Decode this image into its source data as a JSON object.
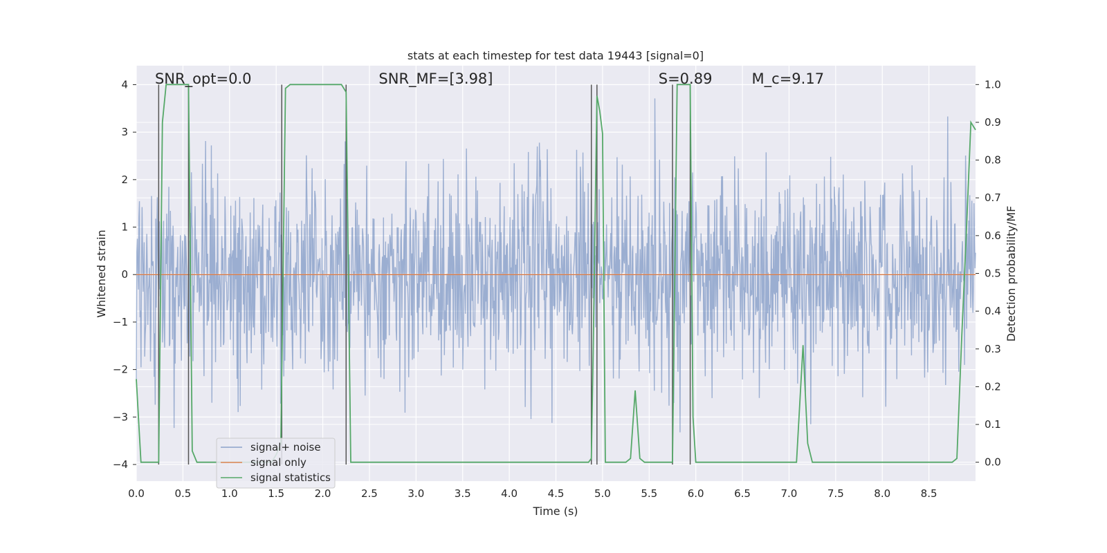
{
  "chart_data": {
    "type": "line",
    "title": "stats at each timestep for test data 19443 [signal=0]",
    "xlabel": "Time (s)",
    "ylabel_left": "Whitened strain",
    "ylabel_right": "Detection probability/MF",
    "xlim": [
      0,
      9.0
    ],
    "ylim_left": [
      -4.35,
      4.4
    ],
    "ylim_right": [
      -0.05,
      1.05
    ],
    "x_ticks": [
      "0.0",
      "0.5",
      "1.0",
      "1.5",
      "2.0",
      "2.5",
      "3.0",
      "3.5",
      "4.0",
      "4.5",
      "5.0",
      "5.5",
      "6.0",
      "6.5",
      "7.0",
      "7.5",
      "8.0",
      "8.5"
    ],
    "x_tick_values": [
      0,
      0.5,
      1.0,
      1.5,
      2.0,
      2.5,
      3.0,
      3.5,
      4.0,
      4.5,
      5.0,
      5.5,
      6.0,
      6.5,
      7.0,
      7.5,
      8.0,
      8.5
    ],
    "y_left_ticks": [
      "4",
      "3",
      "2",
      "1",
      "0",
      "−1",
      "−2",
      "−3",
      "−4"
    ],
    "y_left_tick_values": [
      4,
      3,
      2,
      1,
      0,
      -1,
      -2,
      -3,
      -4
    ],
    "y_right_ticks": [
      "1.0",
      "0.9",
      "0.8",
      "0.7",
      "0.6",
      "0.5",
      "0.4",
      "0.3",
      "0.2",
      "0.1",
      "0.0"
    ],
    "y_right_tick_values": [
      1.0,
      0.9,
      0.8,
      0.7,
      0.6,
      0.5,
      0.4,
      0.3,
      0.2,
      0.1,
      0.0
    ],
    "annotations": [
      {
        "text": "SNR_opt=0.0",
        "x": 0.2
      },
      {
        "text": "SNR_MF=[3.98]",
        "x": 2.6
      },
      {
        "text": "S=0.89",
        "x": 5.6
      },
      {
        "text": "M_c=9.17",
        "x": 6.6
      }
    ],
    "legend": [
      "signal+ noise",
      "signal only",
      "signal statistics"
    ],
    "legend_position": "lower-left",
    "series_colors": {
      "noise": "#4c72b0",
      "signal_only": "#dd8452",
      "statistics": "#55a868",
      "markers": "#555555"
    },
    "noise_amplitude_std": 1.0,
    "signal_only_value": 0,
    "event_markers_x": [
      0.24,
      0.56,
      1.56,
      2.25,
      4.88,
      4.94,
      5.75,
      5.94
    ],
    "statistics": {
      "x": [
        0.0,
        0.05,
        0.1,
        0.15,
        0.2,
        0.24,
        0.28,
        0.32,
        0.37,
        0.42,
        0.47,
        0.52,
        0.56,
        0.6,
        0.65,
        0.7,
        0.8,
        0.9,
        1.0,
        1.1,
        1.2,
        1.3,
        1.4,
        1.45,
        1.5,
        1.55,
        1.6,
        1.65,
        1.7,
        1.8,
        1.9,
        2.0,
        2.1,
        2.2,
        2.25,
        2.3,
        2.35,
        2.45,
        2.6,
        3.0,
        3.5,
        4.0,
        4.5,
        4.75,
        4.8,
        4.85,
        4.88,
        4.9,
        4.94,
        4.97,
        5.0,
        5.03,
        5.06,
        5.1,
        5.2,
        5.25,
        5.3,
        5.35,
        5.4,
        5.45,
        5.5,
        5.6,
        5.7,
        5.75,
        5.8,
        5.85,
        5.9,
        5.94,
        5.97,
        6.0,
        6.05,
        6.07,
        6.15,
        6.2,
        6.3,
        6.5,
        7.0,
        7.08,
        7.15,
        7.2,
        7.25,
        7.3,
        7.5,
        8.0,
        8.5,
        8.75,
        8.8,
        8.85,
        8.9,
        8.95,
        9.0
      ],
      "y": [
        0.22,
        0.0,
        0.0,
        0.0,
        0.0,
        0.0,
        0.9,
        1.0,
        1.0,
        1.0,
        1.0,
        1.0,
        1.0,
        0.03,
        0.0,
        0.0,
        0.0,
        0.0,
        0.0,
        0.0,
        0.0,
        0.0,
        0.0,
        0.0,
        0.02,
        0.05,
        0.99,
        1.0,
        1.0,
        1.0,
        1.0,
        1.0,
        1.0,
        1.0,
        0.98,
        0.0,
        0.0,
        0.0,
        0.0,
        0.0,
        0.0,
        0.0,
        0.0,
        0.0,
        0.0,
        0.0,
        0.01,
        0.3,
        0.97,
        0.93,
        0.87,
        0.0,
        0.0,
        0.0,
        0.0,
        0.0,
        0.01,
        0.19,
        0.01,
        0.0,
        0.0,
        0.0,
        0.0,
        0.0,
        1.0,
        1.0,
        1.0,
        1.0,
        0.12,
        0.0,
        0.0,
        0.0,
        0.0,
        0.0,
        0.0,
        0.0,
        0.0,
        0.0,
        0.31,
        0.05,
        0.0,
        0.0,
        0.0,
        0.0,
        0.0,
        0.0,
        0.01,
        0.32,
        0.6,
        0.9,
        0.88
      ]
    }
  }
}
